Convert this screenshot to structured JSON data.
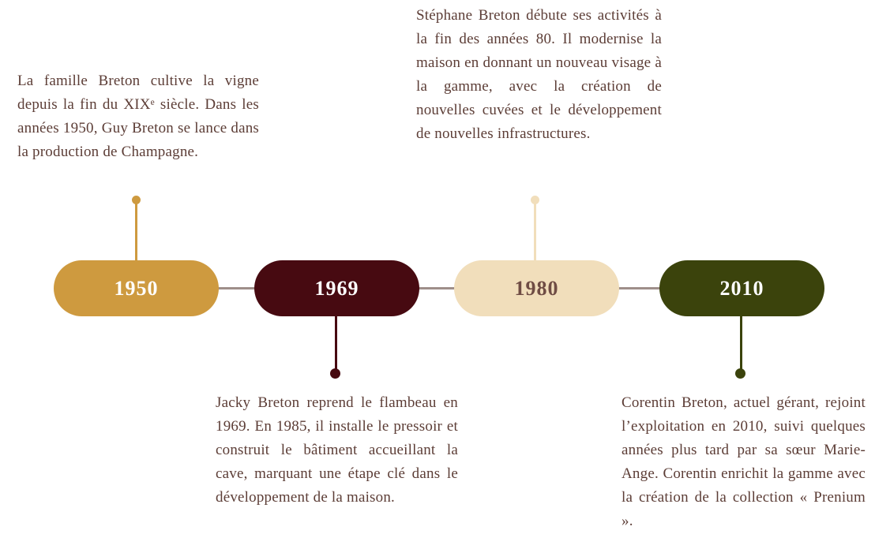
{
  "page": {
    "background": "#ffffff",
    "body_text_color": "#5c3d36",
    "axis_line_color": "#9e8e8a"
  },
  "timeline": {
    "events": [
      {
        "year": "1950",
        "pill_color": "#ce9a3f",
        "year_text_color": "#ffffff",
        "connector_color": "#ce9a3f",
        "description_position": "above",
        "description": "La famille Breton cultive la vigne depuis la fin du XIXᵉ siècle. Dans les années 1950, Guy Breton se lance dans la production de Champagne."
      },
      {
        "year": "1969",
        "pill_color": "#470a11",
        "year_text_color": "#ffffff",
        "connector_color": "#470a11",
        "description_position": "below",
        "description": "Jacky Breton reprend le flambeau en 1969. En 1985, il installe le pressoir et construit le bâtiment accueillant la cave, marquant une étape clé dans le développement de la maison."
      },
      {
        "year": "1980",
        "pill_color": "#f1debb",
        "year_text_color": "#6f4c44",
        "connector_color": "#f1debb",
        "description_position": "above",
        "description": "Stéphane Breton débute ses activités à la fin des années 80. Il modernise la maison en donnant un nouveau visage à la gamme, avec la création de nouvelles cuvées et le développement de nouvelles infrastructures."
      },
      {
        "year": "2010",
        "pill_color": "#3b430c",
        "year_text_color": "#ffffff",
        "connector_color": "#3b430c",
        "description_position": "below",
        "description": "Corentin Breton, actuel gérant, rejoint l’exploitation en 2010, suivi quelques années plus tard par sa sœur Marie-Ange. Corentin enrichit la gamme avec la création de la collection « Prenium »."
      }
    ]
  }
}
